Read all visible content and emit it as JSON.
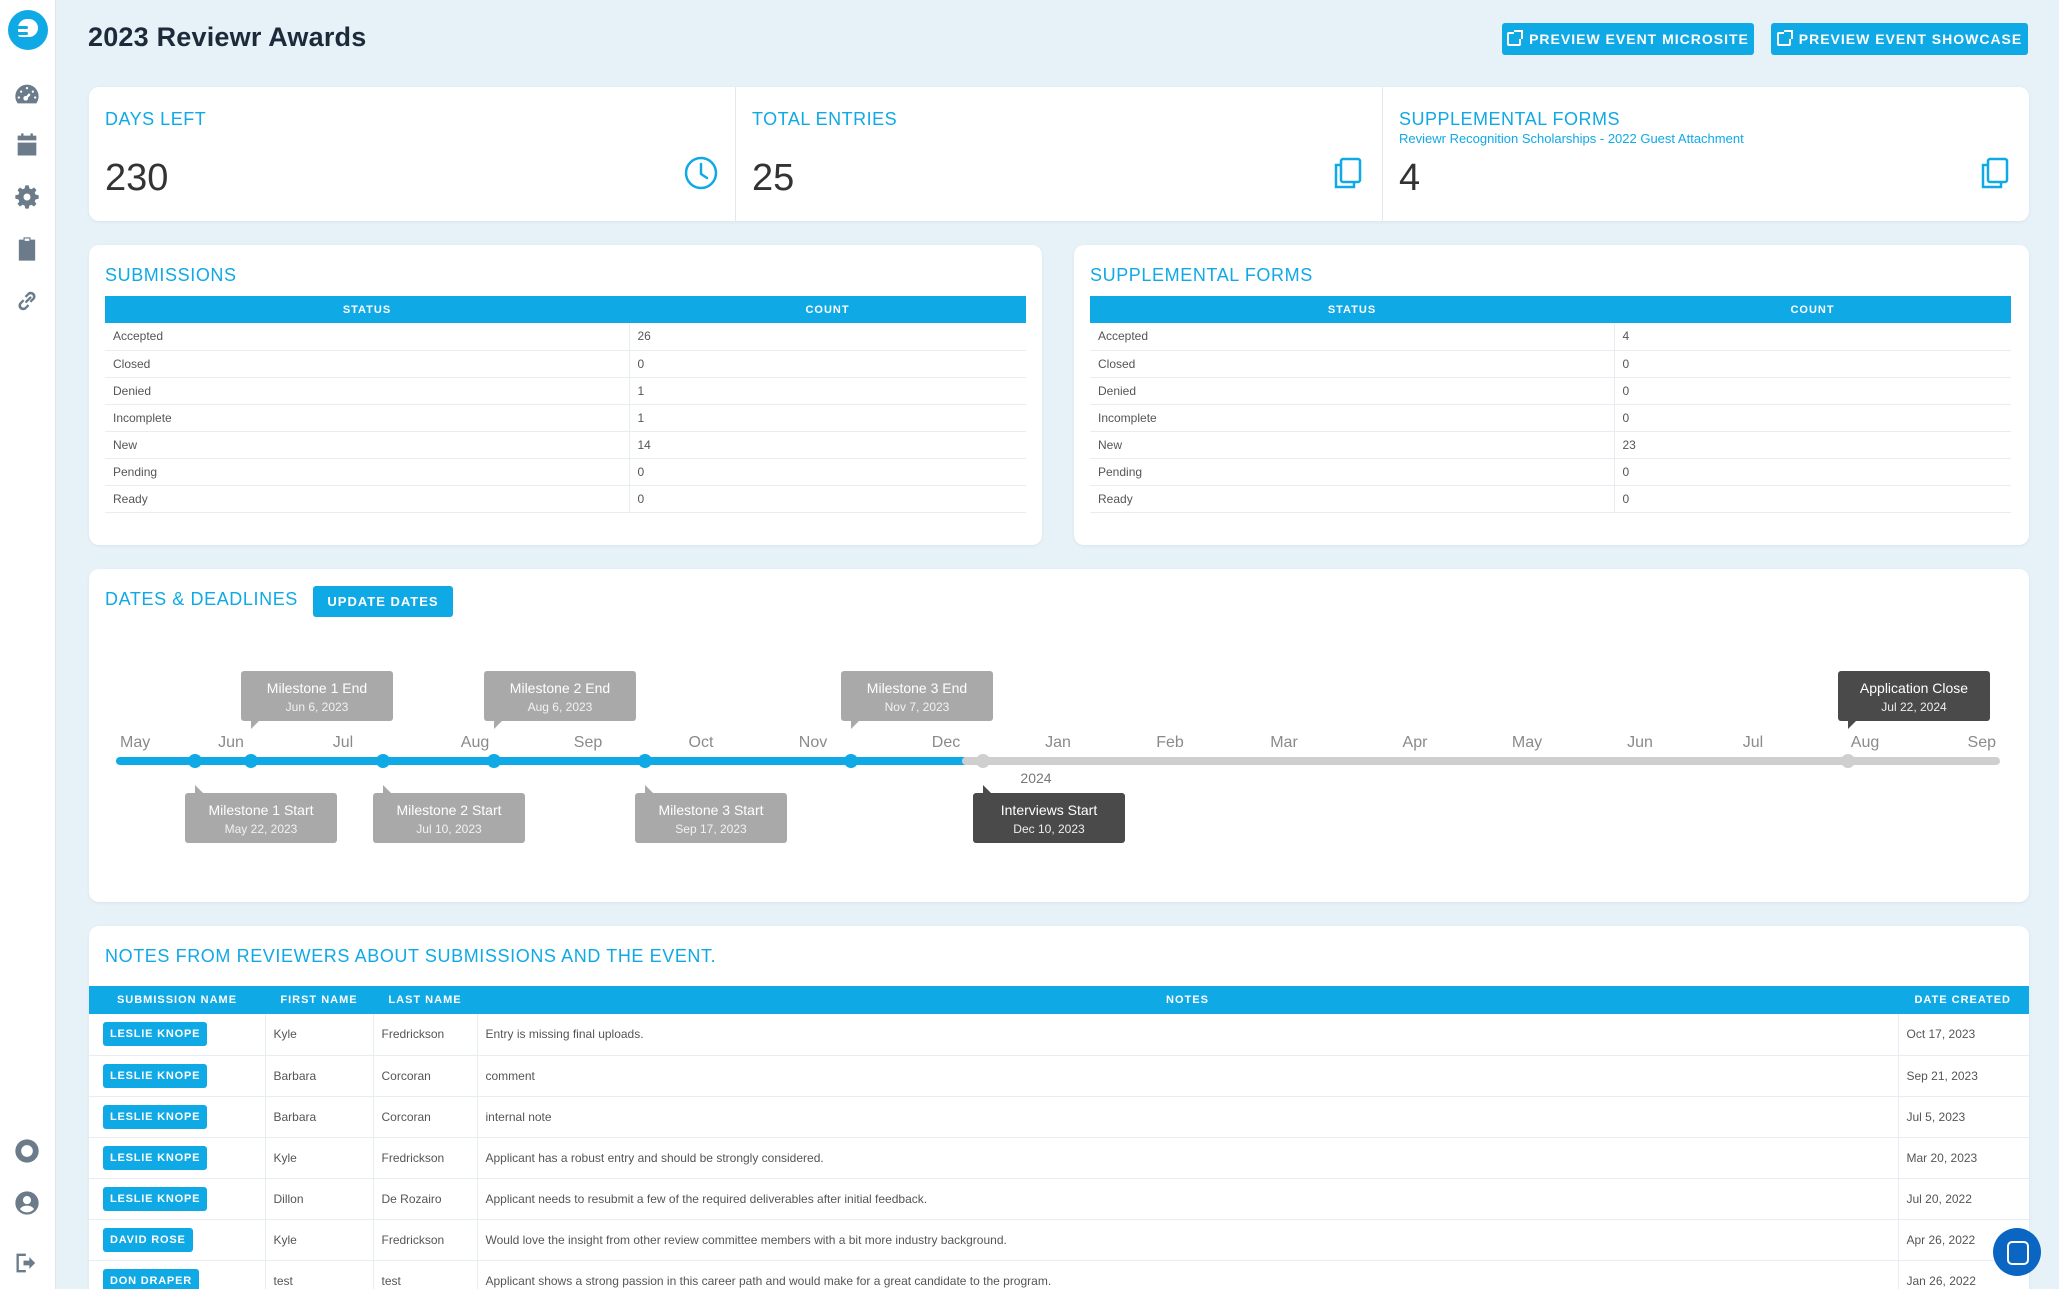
{
  "page": {
    "title": "2023 Reviewr Awards"
  },
  "header": {
    "preview_microsite": "PREVIEW EVENT MICROSITE",
    "preview_showcase": "PREVIEW EVENT SHOWCASE"
  },
  "sidebar": {
    "items": [
      {
        "icon": "dashboard-icon"
      },
      {
        "icon": "calendar-icon"
      },
      {
        "icon": "gear-icon"
      },
      {
        "icon": "clipboard-icon"
      },
      {
        "icon": "link-icon"
      },
      {
        "icon": "help-icon"
      },
      {
        "icon": "user-icon"
      },
      {
        "icon": "logout-icon"
      }
    ]
  },
  "stats": {
    "days_left": {
      "label": "DAYS LEFT",
      "value": "230"
    },
    "total_entries": {
      "label": "TOTAL ENTRIES",
      "value": "25"
    },
    "supplemental": {
      "label": "SUPPLEMENTAL FORMS",
      "sublabel": "Reviewr Recognition Scholarships - 2022 Guest Attachment",
      "value": "4"
    }
  },
  "submissions": {
    "title": "SUBMISSIONS",
    "columns": [
      "STATUS",
      "COUNT"
    ],
    "rows": [
      [
        "Accepted",
        "26"
      ],
      [
        "Closed",
        "0"
      ],
      [
        "Denied",
        "1"
      ],
      [
        "Incomplete",
        "1"
      ],
      [
        "New",
        "14"
      ],
      [
        "Pending",
        "0"
      ],
      [
        "Ready",
        "0"
      ]
    ]
  },
  "supplemental_forms": {
    "title": "SUPPLEMENTAL FORMS",
    "columns": [
      "STATUS",
      "COUNT"
    ],
    "rows": [
      [
        "Accepted",
        "4"
      ],
      [
        "Closed",
        "0"
      ],
      [
        "Denied",
        "0"
      ],
      [
        "Incomplete",
        "0"
      ],
      [
        "New",
        "23"
      ],
      [
        "Pending",
        "0"
      ],
      [
        "Ready",
        "0"
      ]
    ]
  },
  "dates": {
    "title": "DATES & DEADLINES",
    "update_button": "UPDATE DATES",
    "months": [
      "May",
      "Jun",
      "Jul",
      "Aug",
      "Sep",
      "Oct",
      "Nov",
      "Dec",
      "Jan",
      "Feb",
      "Mar",
      "Apr",
      "May",
      "Jun",
      "Jul",
      "Aug",
      "Sep"
    ],
    "year_label": "2024",
    "milestones_above": [
      {
        "name": "Milestone 1 End",
        "date": "Jun 6, 2023",
        "dark": false
      },
      {
        "name": "Milestone 2 End",
        "date": "Aug 6, 2023",
        "dark": false
      },
      {
        "name": "Milestone 3 End",
        "date": "Nov 7, 2023",
        "dark": false
      },
      {
        "name": "Application Close",
        "date": "Jul 22, 2024",
        "dark": true
      }
    ],
    "milestones_below": [
      {
        "name": "Milestone 1 Start",
        "date": "May 22, 2023",
        "dark": false
      },
      {
        "name": "Milestone 2 Start",
        "date": "Jul 10, 2023",
        "dark": false
      },
      {
        "name": "Milestone 3 Start",
        "date": "Sep 17, 2023",
        "dark": false
      },
      {
        "name": "Interviews Start",
        "date": "Dec 10, 2023",
        "dark": true
      }
    ]
  },
  "notes": {
    "title": "NOTES FROM REVIEWERS ABOUT SUBMISSIONS AND THE EVENT.",
    "columns": [
      "SUBMISSION NAME",
      "FIRST NAME",
      "LAST NAME",
      "NOTES",
      "DATE CREATED"
    ],
    "rows": [
      {
        "submission": "LESLIE KNOPE",
        "first": "Kyle",
        "last": "Fredrickson",
        "note": "Entry is missing final uploads.",
        "date": "Oct 17, 2023"
      },
      {
        "submission": "LESLIE KNOPE",
        "first": "Barbara",
        "last": "Corcoran",
        "note": "comment",
        "date": "Sep 21, 2023"
      },
      {
        "submission": "LESLIE KNOPE",
        "first": "Barbara",
        "last": "Corcoran",
        "note": "internal note",
        "date": "Jul 5, 2023"
      },
      {
        "submission": "LESLIE KNOPE",
        "first": "Kyle",
        "last": "Fredrickson",
        "note": "Applicant has a robust entry and should be strongly considered.",
        "date": "Mar 20, 2023"
      },
      {
        "submission": "LESLIE KNOPE",
        "first": "Dillon",
        "last": "De Rozairo",
        "note": "Applicant needs to resubmit a few of the required deliverables after initial feedback.",
        "date": "Jul 20, 2022"
      },
      {
        "submission": "DAVID ROSE",
        "first": "Kyle",
        "last": "Fredrickson",
        "note": "Would love the insight from other review committee members with a bit more industry background.",
        "date": "Apr 26, 2022"
      },
      {
        "submission": "DON DRAPER",
        "first": "test",
        "last": "test",
        "note": "Applicant shows a strong passion in this career path and would make for a great candidate to the program.",
        "date": "Jan 26, 2022"
      }
    ]
  },
  "colors": {
    "accent": "#0fa9e6",
    "background": "#e6f1f8",
    "dark_tooltip": "#4a4a4a",
    "light_tooltip": "#a9a9a9"
  }
}
